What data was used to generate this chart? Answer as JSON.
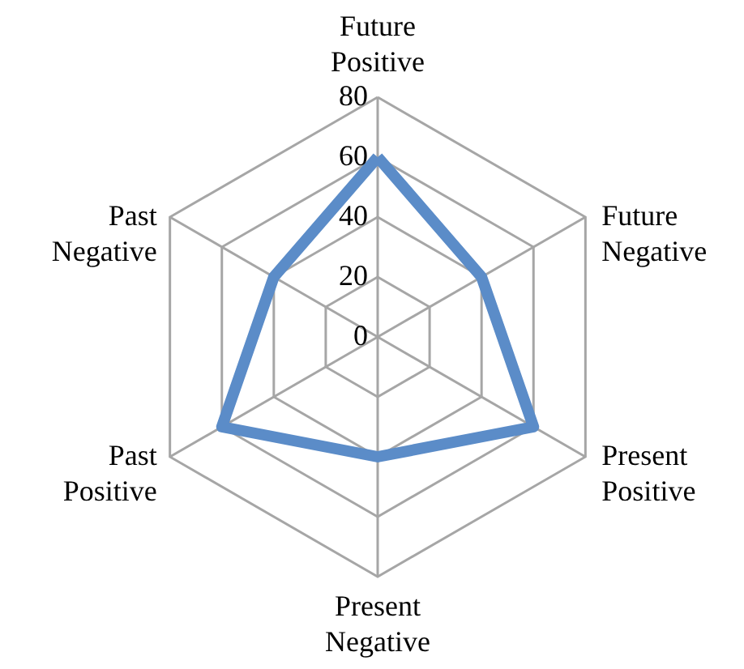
{
  "chart_data": {
    "type": "radar",
    "categories": [
      "Future Positive",
      "Future Negative",
      "Present Positive",
      "Present Negative",
      "Past Positive",
      "Past Negative"
    ],
    "series": [
      {
        "color": "#5b8cc8",
        "values": [
          60,
          40,
          60,
          40,
          60,
          40
        ]
      }
    ],
    "ylim": [
      0,
      80
    ],
    "yticks": [
      0,
      20,
      40,
      60,
      80
    ],
    "grid": true,
    "marker": "none",
    "line_style": "solid"
  }
}
